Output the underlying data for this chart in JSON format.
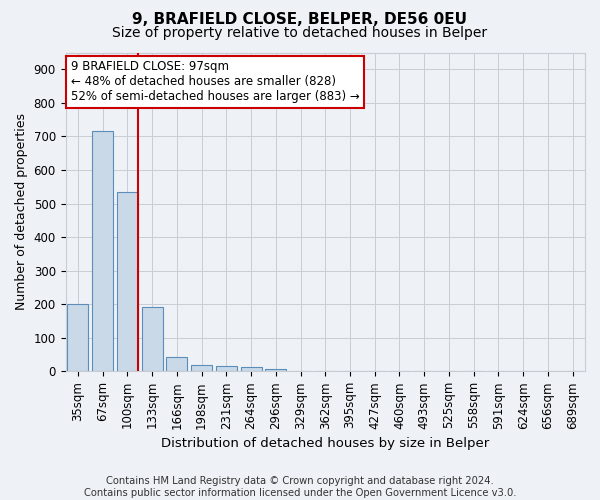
{
  "title1": "9, BRAFIELD CLOSE, BELPER, DE56 0EU",
  "title2": "Size of property relative to detached houses in Belper",
  "xlabel": "Distribution of detached houses by size in Belper",
  "ylabel": "Number of detached properties",
  "categories": [
    "35sqm",
    "67sqm",
    "100sqm",
    "133sqm",
    "166sqm",
    "198sqm",
    "231sqm",
    "264sqm",
    "296sqm",
    "329sqm",
    "362sqm",
    "395sqm",
    "427sqm",
    "460sqm",
    "493sqm",
    "525sqm",
    "558sqm",
    "591sqm",
    "624sqm",
    "656sqm",
    "689sqm"
  ],
  "values": [
    202,
    715,
    535,
    193,
    42,
    19,
    15,
    12,
    8,
    0,
    0,
    0,
    0,
    0,
    0,
    0,
    0,
    0,
    0,
    0,
    0
  ],
  "bar_color": "#c9d9e8",
  "bar_edge_color": "#5b8db8",
  "vline_x_index": 2,
  "vline_color": "#cc0000",
  "annotation_line1": "9 BRAFIELD CLOSE: 97sqm",
  "annotation_line2": "← 48% of detached houses are smaller (828)",
  "annotation_line3": "52% of semi-detached houses are larger (883) →",
  "annotation_box_color": "#ffffff",
  "annotation_box_edge_color": "#cc0000",
  "ylim": [
    0,
    950
  ],
  "yticks": [
    0,
    100,
    200,
    300,
    400,
    500,
    600,
    700,
    800,
    900
  ],
  "footer": "Contains HM Land Registry data © Crown copyright and database right 2024.\nContains public sector information licensed under the Open Government Licence v3.0.",
  "background_color": "#eef2f7",
  "plot_background": "#eef2f7",
  "grid_color": "#c8cdd4",
  "title1_fontsize": 11,
  "title2_fontsize": 10,
  "xlabel_fontsize": 9.5,
  "ylabel_fontsize": 9,
  "tick_fontsize": 8.5,
  "footer_fontsize": 7.2,
  "annotation_fontsize": 8.5
}
